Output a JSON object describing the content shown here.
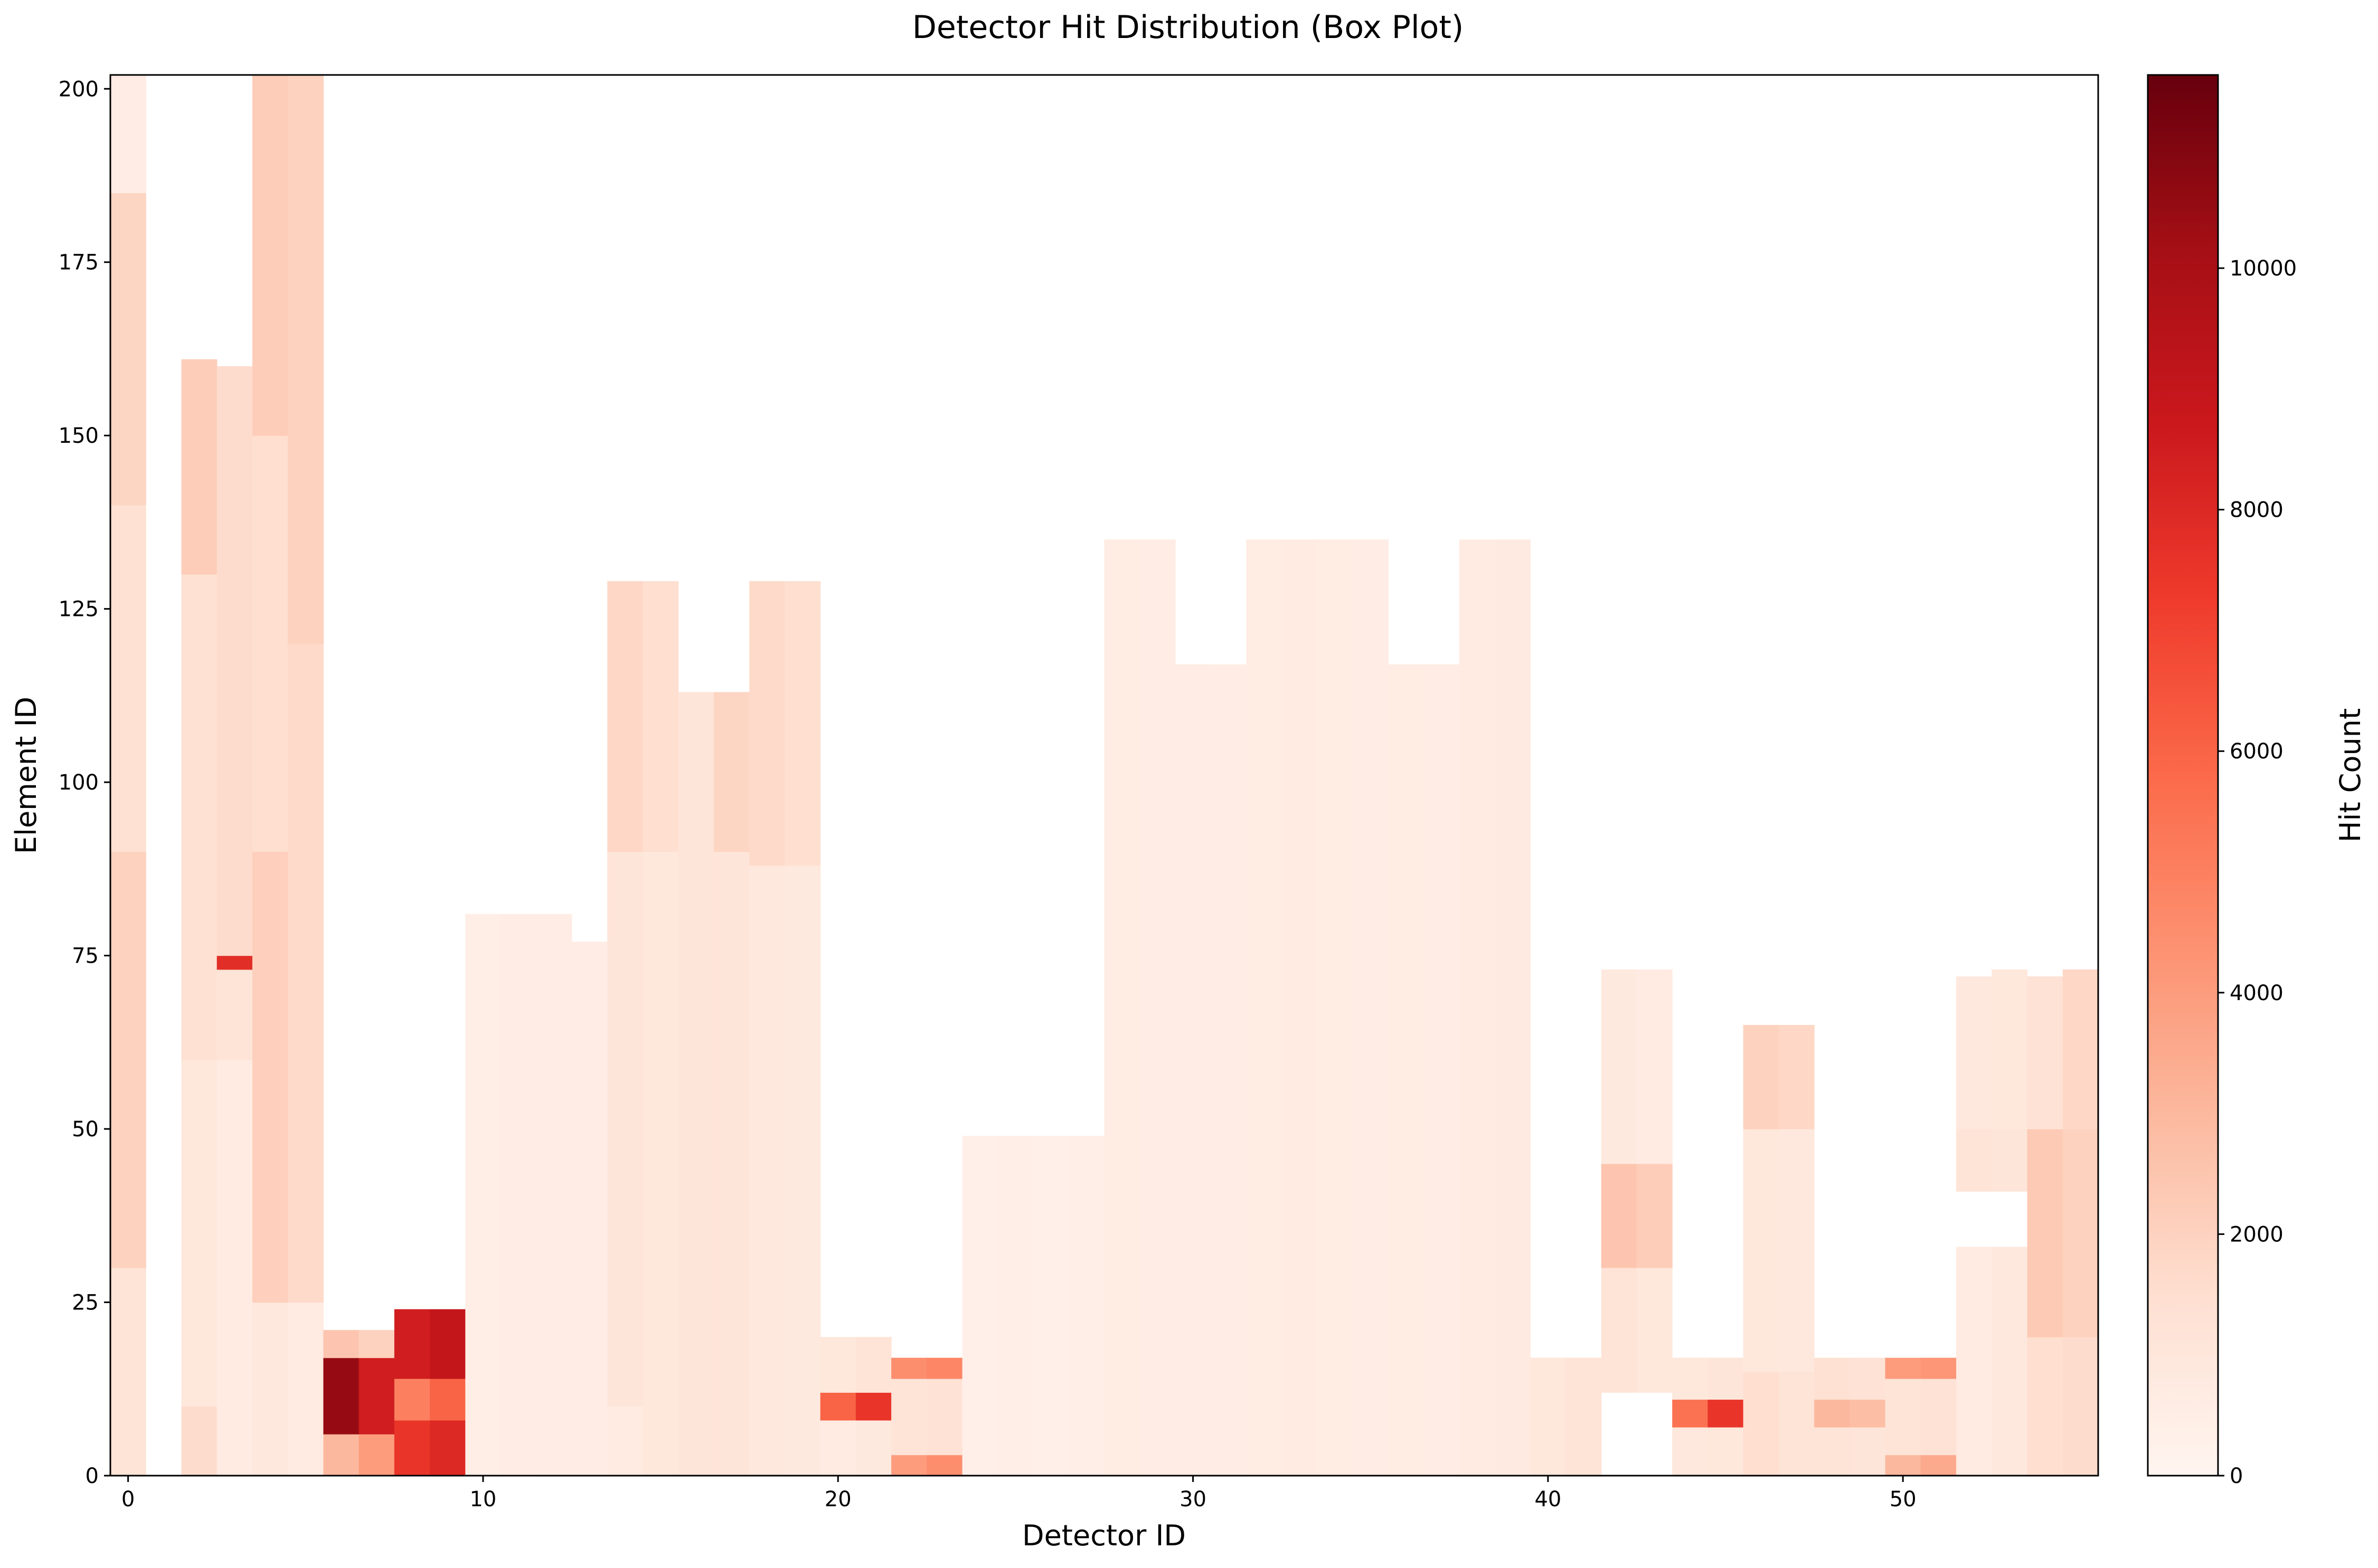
{
  "chart_data": {
    "type": "heatmap",
    "title": "Detector Hit Distribution (Box Plot)",
    "xlabel": "Detector ID",
    "ylabel": "Element ID",
    "colorbar_label": "Hit Count",
    "colormap": "Reds",
    "colormap_stops": [
      "#fff5f0",
      "#fee0d2",
      "#fcbba1",
      "#fc9272",
      "#fb6a4a",
      "#ef3b2c",
      "#cb181d",
      "#a50f15",
      "#67000d"
    ],
    "xlim": [
      -0.5,
      55.5
    ],
    "ylim": [
      0,
      202
    ],
    "vlim": [
      0,
      11600
    ],
    "x_ticks": [
      0,
      10,
      20,
      30,
      40,
      50
    ],
    "y_ticks": [
      0,
      25,
      50,
      75,
      100,
      125,
      150,
      175,
      200
    ],
    "colorbar_ticks": [
      0,
      2000,
      4000,
      6000,
      8000,
      10000
    ],
    "grid": false,
    "detectors": [
      {
        "id": 0,
        "max_element": 202,
        "segments": [
          {
            "from": 0,
            "to": 30,
            "value": 1200
          },
          {
            "from": 30,
            "to": 90,
            "value": 2000
          },
          {
            "from": 90,
            "to": 140,
            "value": 1400
          },
          {
            "from": 140,
            "to": 185,
            "value": 1900
          },
          {
            "from": 185,
            "to": 202,
            "value": 600
          }
        ]
      },
      {
        "id": 1,
        "max_element": 0,
        "segments": []
      },
      {
        "id": 2,
        "max_element": 161,
        "segments": [
          {
            "from": 0,
            "to": 10,
            "value": 1600
          },
          {
            "from": 10,
            "to": 60,
            "value": 1000
          },
          {
            "from": 60,
            "to": 130,
            "value": 1400
          },
          {
            "from": 130,
            "to": 161,
            "value": 2200
          }
        ]
      },
      {
        "id": 3,
        "max_element": 160,
        "segments": [
          {
            "from": 0,
            "to": 60,
            "value": 700
          },
          {
            "from": 60,
            "to": 73,
            "value": 1200
          },
          {
            "from": 73,
            "to": 75,
            "value": 7800
          },
          {
            "from": 75,
            "to": 160,
            "value": 1600
          }
        ]
      },
      {
        "id": 4,
        "max_element": 202,
        "segments": [
          {
            "from": 0,
            "to": 25,
            "value": 900
          },
          {
            "from": 25,
            "to": 90,
            "value": 2100
          },
          {
            "from": 90,
            "to": 150,
            "value": 1500
          },
          {
            "from": 150,
            "to": 202,
            "value": 2200
          }
        ]
      },
      {
        "id": 5,
        "max_element": 202,
        "segments": [
          {
            "from": 0,
            "to": 25,
            "value": 700
          },
          {
            "from": 25,
            "to": 120,
            "value": 1700
          },
          {
            "from": 120,
            "to": 202,
            "value": 2000
          }
        ]
      },
      {
        "id": 6,
        "max_element": 21,
        "segments": [
          {
            "from": 0,
            "to": 6,
            "value": 3000
          },
          {
            "from": 6,
            "to": 17,
            "value": 10500
          },
          {
            "from": 17,
            "to": 21,
            "value": 2500
          }
        ]
      },
      {
        "id": 7,
        "max_element": 21,
        "segments": [
          {
            "from": 0,
            "to": 6,
            "value": 4000
          },
          {
            "from": 6,
            "to": 17,
            "value": 8500
          },
          {
            "from": 17,
            "to": 21,
            "value": 2000
          }
        ]
      },
      {
        "id": 8,
        "max_element": 24,
        "segments": [
          {
            "from": 0,
            "to": 8,
            "value": 7500
          },
          {
            "from": 8,
            "to": 14,
            "value": 5000
          },
          {
            "from": 14,
            "to": 24,
            "value": 8500
          }
        ]
      },
      {
        "id": 9,
        "max_element": 24,
        "segments": [
          {
            "from": 0,
            "to": 8,
            "value": 8000
          },
          {
            "from": 8,
            "to": 14,
            "value": 6000
          },
          {
            "from": 14,
            "to": 24,
            "value": 9000
          }
        ]
      },
      {
        "id": 10,
        "max_element": 81,
        "segments": [
          {
            "from": 0,
            "to": 81,
            "value": 500
          }
        ]
      },
      {
        "id": 11,
        "max_element": 81,
        "segments": [
          {
            "from": 0,
            "to": 81,
            "value": 600
          }
        ]
      },
      {
        "id": 12,
        "max_element": 81,
        "segments": [
          {
            "from": 0,
            "to": 81,
            "value": 550
          }
        ]
      },
      {
        "id": 13,
        "max_element": 77,
        "segments": [
          {
            "from": 0,
            "to": 77,
            "value": 550
          }
        ]
      },
      {
        "id": 14,
        "max_element": 129,
        "segments": [
          {
            "from": 0,
            "to": 10,
            "value": 700
          },
          {
            "from": 10,
            "to": 90,
            "value": 1100
          },
          {
            "from": 90,
            "to": 129,
            "value": 1800
          }
        ]
      },
      {
        "id": 15,
        "max_element": 129,
        "segments": [
          {
            "from": 0,
            "to": 90,
            "value": 1000
          },
          {
            "from": 90,
            "to": 129,
            "value": 1500
          }
        ]
      },
      {
        "id": 16,
        "max_element": 113,
        "segments": [
          {
            "from": 0,
            "to": 113,
            "value": 1100
          }
        ]
      },
      {
        "id": 17,
        "max_element": 113,
        "segments": [
          {
            "from": 0,
            "to": 90,
            "value": 1100
          },
          {
            "from": 90,
            "to": 113,
            "value": 1900
          }
        ]
      },
      {
        "id": 18,
        "max_element": 129,
        "segments": [
          {
            "from": 0,
            "to": 88,
            "value": 900
          },
          {
            "from": 88,
            "to": 129,
            "value": 1700
          }
        ]
      },
      {
        "id": 19,
        "max_element": 129,
        "segments": [
          {
            "from": 0,
            "to": 88,
            "value": 800
          },
          {
            "from": 88,
            "to": 129,
            "value": 1500
          }
        ]
      },
      {
        "id": 20,
        "max_element": 20,
        "segments": [
          {
            "from": 0,
            "to": 8,
            "value": 700
          },
          {
            "from": 8,
            "to": 12,
            "value": 6000
          },
          {
            "from": 12,
            "to": 20,
            "value": 1000
          }
        ]
      },
      {
        "id": 21,
        "max_element": 20,
        "segments": [
          {
            "from": 0,
            "to": 8,
            "value": 800
          },
          {
            "from": 8,
            "to": 12,
            "value": 7500
          },
          {
            "from": 12,
            "to": 20,
            "value": 1200
          }
        ]
      },
      {
        "id": 22,
        "max_element": 17,
        "segments": [
          {
            "from": 0,
            "to": 3,
            "value": 4000
          },
          {
            "from": 3,
            "to": 14,
            "value": 1200
          },
          {
            "from": 14,
            "to": 17,
            "value": 4500
          }
        ]
      },
      {
        "id": 23,
        "max_element": 17,
        "segments": [
          {
            "from": 0,
            "to": 3,
            "value": 4500
          },
          {
            "from": 3,
            "to": 14,
            "value": 1300
          },
          {
            "from": 14,
            "to": 17,
            "value": 4800
          }
        ]
      },
      {
        "id": 24,
        "max_element": 49,
        "segments": [
          {
            "from": 0,
            "to": 49,
            "value": 400
          }
        ]
      },
      {
        "id": 25,
        "max_element": 49,
        "segments": [
          {
            "from": 0,
            "to": 49,
            "value": 450
          }
        ]
      },
      {
        "id": 26,
        "max_element": 49,
        "segments": [
          {
            "from": 0,
            "to": 49,
            "value": 400
          }
        ]
      },
      {
        "id": 27,
        "max_element": 49,
        "segments": [
          {
            "from": 0,
            "to": 49,
            "value": 450
          }
        ]
      },
      {
        "id": 28,
        "max_element": 135,
        "segments": [
          {
            "from": 0,
            "to": 135,
            "value": 650
          }
        ]
      },
      {
        "id": 29,
        "max_element": 135,
        "segments": [
          {
            "from": 0,
            "to": 135,
            "value": 600
          }
        ]
      },
      {
        "id": 30,
        "max_element": 117,
        "segments": [
          {
            "from": 0,
            "to": 117,
            "value": 600
          }
        ]
      },
      {
        "id": 31,
        "max_element": 117,
        "segments": [
          {
            "from": 0,
            "to": 117,
            "value": 550
          }
        ]
      },
      {
        "id": 32,
        "max_element": 135,
        "segments": [
          {
            "from": 0,
            "to": 135,
            "value": 650
          }
        ]
      },
      {
        "id": 33,
        "max_element": 135,
        "segments": [
          {
            "from": 0,
            "to": 135,
            "value": 700
          }
        ]
      },
      {
        "id": 34,
        "max_element": 135,
        "segments": [
          {
            "from": 0,
            "to": 135,
            "value": 650
          }
        ]
      },
      {
        "id": 35,
        "max_element": 135,
        "segments": [
          {
            "from": 0,
            "to": 135,
            "value": 600
          }
        ]
      },
      {
        "id": 36,
        "max_element": 117,
        "segments": [
          {
            "from": 0,
            "to": 117,
            "value": 650
          }
        ]
      },
      {
        "id": 37,
        "max_element": 117,
        "segments": [
          {
            "from": 0,
            "to": 117,
            "value": 600
          }
        ]
      },
      {
        "id": 38,
        "max_element": 135,
        "segments": [
          {
            "from": 0,
            "to": 135,
            "value": 700
          }
        ]
      },
      {
        "id": 39,
        "max_element": 135,
        "segments": [
          {
            "from": 0,
            "to": 135,
            "value": 750
          }
        ]
      },
      {
        "id": 40,
        "max_element": 17,
        "segments": [
          {
            "from": 0,
            "to": 17,
            "value": 1000
          }
        ]
      },
      {
        "id": 41,
        "max_element": 17,
        "segments": [
          {
            "from": 0,
            "to": 17,
            "value": 1200
          }
        ]
      },
      {
        "id": 42,
        "max_element": 73,
        "segments": [
          {
            "from": 0,
            "to": 12,
            "value": 0
          },
          {
            "from": 12,
            "to": 30,
            "value": 1200
          },
          {
            "from": 30,
            "to": 45,
            "value": 2500
          },
          {
            "from": 45,
            "to": 73,
            "value": 800
          }
        ]
      },
      {
        "id": 43,
        "max_element": 73,
        "segments": [
          {
            "from": 0,
            "to": 12,
            "value": 0
          },
          {
            "from": 12,
            "to": 30,
            "value": 1000
          },
          {
            "from": 30,
            "to": 45,
            "value": 2200
          },
          {
            "from": 45,
            "to": 73,
            "value": 700
          }
        ]
      },
      {
        "id": 44,
        "max_element": 17,
        "segments": [
          {
            "from": 0,
            "to": 7,
            "value": 900
          },
          {
            "from": 7,
            "to": 11,
            "value": 5500
          },
          {
            "from": 11,
            "to": 17,
            "value": 1000
          }
        ]
      },
      {
        "id": 45,
        "max_element": 17,
        "segments": [
          {
            "from": 0,
            "to": 7,
            "value": 1000
          },
          {
            "from": 7,
            "to": 11,
            "value": 7500
          },
          {
            "from": 11,
            "to": 17,
            "value": 1100
          }
        ]
      },
      {
        "id": 46,
        "max_element": 65,
        "segments": [
          {
            "from": 0,
            "to": 15,
            "value": 1500
          },
          {
            "from": 15,
            "to": 50,
            "value": 1000
          },
          {
            "from": 50,
            "to": 65,
            "value": 2000
          }
        ]
      },
      {
        "id": 47,
        "max_element": 65,
        "segments": [
          {
            "from": 0,
            "to": 15,
            "value": 1200
          },
          {
            "from": 15,
            "to": 50,
            "value": 900
          },
          {
            "from": 50,
            "to": 65,
            "value": 1800
          }
        ]
      },
      {
        "id": 48,
        "max_element": 17,
        "segments": [
          {
            "from": 0,
            "to": 7,
            "value": 1200
          },
          {
            "from": 7,
            "to": 11,
            "value": 3000
          },
          {
            "from": 11,
            "to": 17,
            "value": 1400
          }
        ]
      },
      {
        "id": 49,
        "max_element": 17,
        "segments": [
          {
            "from": 0,
            "to": 7,
            "value": 1100
          },
          {
            "from": 7,
            "to": 11,
            "value": 2800
          },
          {
            "from": 11,
            "to": 17,
            "value": 1300
          }
        ]
      },
      {
        "id": 50,
        "max_element": 17,
        "segments": [
          {
            "from": 0,
            "to": 3,
            "value": 3000
          },
          {
            "from": 3,
            "to": 14,
            "value": 1200
          },
          {
            "from": 14,
            "to": 17,
            "value": 4000
          }
        ]
      },
      {
        "id": 51,
        "max_element": 17,
        "segments": [
          {
            "from": 0,
            "to": 3,
            "value": 3500
          },
          {
            "from": 3,
            "to": 14,
            "value": 1300
          },
          {
            "from": 14,
            "to": 17,
            "value": 4200
          }
        ]
      },
      {
        "id": 52,
        "max_element": 72,
        "segments": [
          {
            "from": 0,
            "to": 33,
            "value": 700
          },
          {
            "from": 33,
            "to": 41,
            "value": 0
          },
          {
            "from": 41,
            "to": 50,
            "value": 1200
          },
          {
            "from": 50,
            "to": 72,
            "value": 900
          }
        ]
      },
      {
        "id": 53,
        "max_element": 73,
        "segments": [
          {
            "from": 0,
            "to": 33,
            "value": 900
          },
          {
            "from": 33,
            "to": 41,
            "value": 0
          },
          {
            "from": 41,
            "to": 50,
            "value": 1100
          },
          {
            "from": 50,
            "to": 73,
            "value": 1000
          }
        ]
      },
      {
        "id": 54,
        "max_element": 72,
        "segments": [
          {
            "from": 0,
            "to": 20,
            "value": 1500
          },
          {
            "from": 20,
            "to": 50,
            "value": 2300
          },
          {
            "from": 50,
            "to": 72,
            "value": 1300
          }
        ]
      },
      {
        "id": 55,
        "max_element": 73,
        "segments": [
          {
            "from": 0,
            "to": 20,
            "value": 1600
          },
          {
            "from": 20,
            "to": 50,
            "value": 2000
          },
          {
            "from": 50,
            "to": 73,
            "value": 1800
          }
        ]
      }
    ]
  }
}
